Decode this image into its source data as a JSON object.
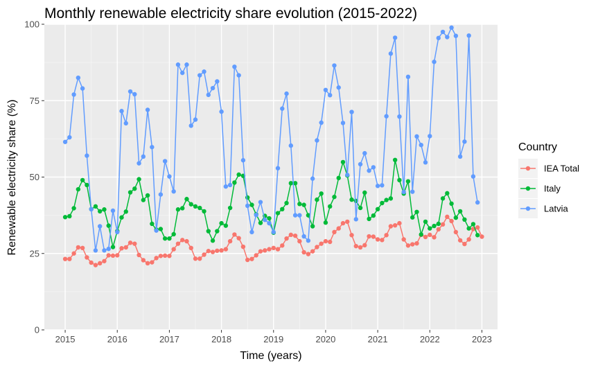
{
  "chart_data": {
    "type": "line",
    "title": "Monthly renewable electricity share evolution (2015-2022)",
    "xlabel": "Time (years)",
    "ylabel": "Renewable electricity share (%)",
    "xlim": [
      2014.6,
      2023.3
    ],
    "ylim": [
      0,
      100
    ],
    "x_ticks": [
      2015,
      2016,
      2017,
      2018,
      2019,
      2020,
      2021,
      2022,
      2023
    ],
    "y_ticks": [
      0,
      25,
      50,
      75,
      100
    ],
    "grid": true,
    "legend": {
      "title": "Country",
      "position": "right"
    },
    "x_start": 2015,
    "x_step_months": 1,
    "series": [
      {
        "name": "IEA Total",
        "color": "#F8766D",
        "values": [
          23.2,
          23.2,
          25.0,
          27.0,
          26.8,
          23.7,
          22.0,
          21.2,
          21.8,
          22.5,
          24.4,
          24.3,
          24.4,
          26.7,
          27.0,
          28.5,
          28.2,
          24.5,
          22.8,
          21.8,
          22.1,
          23.5,
          24.2,
          24.3,
          24.2,
          26.4,
          28.2,
          29.4,
          29.0,
          26.8,
          23.3,
          23.3,
          24.6,
          25.8,
          25.5,
          25.9,
          26.0,
          26.4,
          29.0,
          31.2,
          30.0,
          27.2,
          22.9,
          23.2,
          24.4,
          25.7,
          26.0,
          26.4,
          26.8,
          26.4,
          27.6,
          29.9,
          31.1,
          30.8,
          29.0,
          25.4,
          24.8,
          25.7,
          27.1,
          28.2,
          29.0,
          28.8,
          32.0,
          33.2,
          34.9,
          35.4,
          31.0,
          27.4,
          27.0,
          27.7,
          30.6,
          30.5,
          29.6,
          29.4,
          31.0,
          33.9,
          34.2,
          34.9,
          29.6,
          27.6,
          28.0,
          28.3,
          31.1,
          30.4,
          31.1,
          30.3,
          32.9,
          34.5,
          37.0,
          35.6,
          32.0,
          29.3,
          28.1,
          29.6,
          33.0,
          33.5,
          30.5
        ]
      },
      {
        "name": "Italy",
        "color": "#00BA38",
        "values": [
          36.9,
          37.2,
          39.8,
          46.0,
          49.0,
          47.4,
          39.5,
          40.4,
          38.8,
          39.4,
          34.1,
          27.1,
          32.3,
          36.8,
          38.7,
          45.0,
          46.2,
          49.3,
          42.5,
          44.0,
          34.7,
          32.8,
          33.0,
          29.9,
          29.9,
          31.3,
          39.4,
          39.8,
          42.8,
          41.1,
          40.4,
          39.9,
          38.8,
          32.3,
          29.2,
          32.3,
          34.9,
          34.1,
          39.9,
          48.2,
          50.8,
          50.4,
          43.3,
          40.9,
          37.8,
          35.0,
          37.3,
          36.5,
          31.8,
          38.2,
          39.5,
          41.5,
          48.0,
          48.0,
          41.2,
          40.9,
          37.5,
          33.9,
          42.6,
          44.6,
          35.1,
          40.4,
          43.5,
          49.7,
          54.9,
          50.5,
          42.6,
          42.2,
          39.9,
          44.9,
          36.3,
          37.4,
          39.5,
          41.5,
          42.5,
          43.0,
          55.6,
          49.0,
          44.6,
          48.6,
          36.8,
          38.6,
          31.2,
          35.4,
          33.2,
          34.0,
          34.7,
          43.0,
          44.7,
          41.3,
          36.7,
          38.8,
          36.1,
          33.2,
          34.6,
          31.0
        ]
      },
      {
        "name": "Latvia",
        "color": "#619CFF",
        "values": [
          61.5,
          63.0,
          77.0,
          82.5,
          79.0,
          57.0,
          39.5,
          26.0,
          33.9,
          26.0,
          26.5,
          39.0,
          32.0,
          71.6,
          67.6,
          78.0,
          77.1,
          54.5,
          56.7,
          72.0,
          59.8,
          32.5,
          44.3,
          55.2,
          50.2,
          45.3,
          86.8,
          84.1,
          86.8,
          66.8,
          68.8,
          83.3,
          84.5,
          76.9,
          79.1,
          81.3,
          71.4,
          46.9,
          47.4,
          86.1,
          83.3,
          55.5,
          40.6,
          32.0,
          37.6,
          41.8,
          36.0,
          34.9,
          32.0,
          52.9,
          72.4,
          77.3,
          60.3,
          37.5,
          37.5,
          30.6,
          29.2,
          49.5,
          62.0,
          67.8,
          78.5,
          76.8,
          86.5,
          79.3,
          67.7,
          50.7,
          71.3,
          36.2,
          54.2,
          57.8,
          52.1,
          53.2,
          47.1,
          47.3,
          69.9,
          90.4,
          95.6,
          69.8,
          45.1,
          82.8,
          45.2,
          63.3,
          60.5,
          54.8,
          63.4,
          87.7,
          95.5,
          97.5,
          95.8,
          98.9,
          96.2,
          56.7,
          61.6,
          96.3,
          50.2,
          41.7
        ]
      }
    ]
  }
}
